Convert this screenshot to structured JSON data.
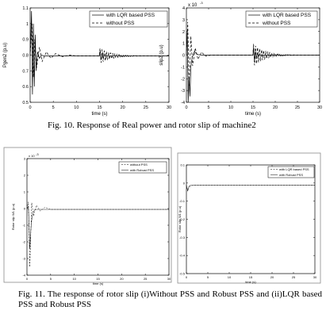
{
  "figure10": {
    "caption": "Fig. 10. Response of Real power and rotor slip of machine2"
  },
  "figure11": {
    "caption": "Fig. 11. The response of rotor slip (i)Without PSS and Robust PSS and (ii)LQR based PSS and Robust PSS"
  },
  "chart_data": [
    {
      "id": "pgen2",
      "type": "line",
      "ylabel": "Pgen2 (p.u)",
      "xlabel": "time (s)",
      "xlim": [
        0,
        30
      ],
      "ylim": [
        0.5,
        1.1
      ],
      "xticks": [
        0,
        5,
        10,
        15,
        20,
        25,
        30
      ],
      "xtick_labels": [
        "0",
        "5",
        "10",
        "15",
        "20",
        "25",
        "30"
      ],
      "yticks": [
        0.5,
        0.6,
        0.7,
        0.8,
        0.9,
        1.0,
        1.1
      ],
      "ytick_labels": [
        "0.5",
        "0.6",
        "0.7",
        "0.8",
        "0.9",
        "1",
        "1.1"
      ],
      "legend_position": "top-right",
      "series": [
        {
          "name": "with LQR based PSS",
          "style": "solid",
          "base": 0.795,
          "init": [
            [
              0.0,
              0.795
            ],
            [
              0.3,
              1.08
            ],
            [
              0.5,
              0.55
            ],
            [
              0.7,
              1.0
            ],
            [
              0.9,
              0.6
            ],
            [
              1.1,
              0.93
            ],
            [
              1.3,
              0.7
            ],
            [
              1.6,
              0.82
            ],
            [
              2.0,
              0.78
            ],
            [
              2.5,
              0.8
            ],
            [
              3.0,
              0.795
            ]
          ],
          "dist_at": 15,
          "dist_amp": 0.035,
          "dist_decay": 0.6
        },
        {
          "name": "without PSS",
          "style": "dashed",
          "base": 0.795,
          "init": [
            [
              0.0,
              0.795
            ],
            [
              0.4,
              1.0
            ],
            [
              0.7,
              0.66
            ],
            [
              1.0,
              0.9
            ],
            [
              1.4,
              0.72
            ],
            [
              2.0,
              0.85
            ],
            [
              2.6,
              0.76
            ],
            [
              3.5,
              0.82
            ],
            [
              4.5,
              0.78
            ],
            [
              5.5,
              0.81
            ],
            [
              7.0,
              0.79
            ],
            [
              8.5,
              0.8
            ],
            [
              10.0,
              0.795
            ]
          ],
          "dist_at": 15,
          "dist_amp": 0.05,
          "dist_decay": 2.5
        }
      ]
    },
    {
      "id": "slip2",
      "type": "line",
      "ylabel": "slip2 (p.u)",
      "xlabel": "time (s)",
      "xlim": [
        0,
        30
      ],
      "ylim": [
        -4,
        4
      ],
      "yscale_label": "x 10",
      "yscale_exponent": "-3",
      "xticks": [
        0,
        5,
        10,
        15,
        20,
        25,
        30
      ],
      "xtick_labels": [
        "0",
        "5",
        "10",
        "15",
        "20",
        "25",
        "30"
      ],
      "yticks": [
        -4,
        -3,
        -2,
        -1,
        0,
        1,
        2,
        3,
        4
      ],
      "ytick_labels": [
        "-4",
        "-3",
        "-2",
        "-1",
        "0",
        "1",
        "2",
        "3",
        "4"
      ],
      "legend_position": "top-right",
      "series": [
        {
          "name": "with LQR based PSS",
          "style": "solid",
          "base": 0,
          "init": [
            [
              0.0,
              0
            ],
            [
              0.2,
              2.0
            ],
            [
              0.4,
              -4.0
            ],
            [
              0.6,
              -1.8
            ],
            [
              0.8,
              -3.5
            ],
            [
              1.0,
              -1.0
            ],
            [
              1.3,
              -0.2
            ],
            [
              1.8,
              0.3
            ],
            [
              2.5,
              0.05
            ],
            [
              3.5,
              0
            ]
          ],
          "dist_at": 15,
          "dist_amp": 0.7,
          "dist_decay": 0.6
        },
        {
          "name": "without PSS",
          "style": "dashed",
          "base": 0,
          "init": [
            [
              0.0,
              0
            ],
            [
              0.3,
              2.8
            ],
            [
              0.6,
              -2.6
            ],
            [
              1.0,
              1.6
            ],
            [
              1.4,
              -0.9
            ],
            [
              2.0,
              0.6
            ],
            [
              2.6,
              -0.35
            ],
            [
              3.4,
              0.25
            ],
            [
              4.4,
              -0.1
            ],
            [
              5.5,
              0
            ]
          ],
          "dist_at": 15,
          "dist_amp": 1.0,
          "dist_decay": 2.5
        }
      ]
    },
    {
      "id": "fig11a",
      "type": "line",
      "ylabel": "Rotor slip W1 (p.u)",
      "xlabel": "time (s)",
      "xlim": [
        0,
        30
      ],
      "ylim": [
        -4,
        3
      ],
      "yscale_label": "x 10",
      "yscale_exponent": "-3",
      "xticks": [
        0,
        5,
        10,
        15,
        20,
        25,
        30
      ],
      "xtick_labels": [
        "0",
        "5",
        "10",
        "15",
        "20",
        "25",
        "30"
      ],
      "yticks": [
        -4,
        -3,
        -2,
        -1,
        0,
        1,
        2,
        3
      ],
      "ytick_labels": [
        "-4",
        "-3",
        "-2",
        "-1",
        "0",
        "1",
        "2",
        "3"
      ],
      "legend_position": "top-right",
      "series": [
        {
          "name": "without PSS",
          "style": "dashed",
          "base": -0.05,
          "init": [
            [
              0.0,
              0
            ],
            [
              0.3,
              0.4
            ],
            [
              0.6,
              -3.5
            ],
            [
              1.0,
              0.35
            ],
            [
              1.4,
              -0.45
            ],
            [
              2.0,
              0.2
            ],
            [
              2.8,
              -0.15
            ],
            [
              3.8,
              0.08
            ],
            [
              5.0,
              -0.05
            ]
          ],
          "dist_at": null,
          "dist_amp": 0,
          "dist_decay": 1
        },
        {
          "name": "with Robust PSS",
          "style": "solid",
          "base": -0.05,
          "init": [
            [
              0.0,
              0
            ],
            [
              0.3,
              0.15
            ],
            [
              0.6,
              -2.4
            ],
            [
              0.9,
              -0.9
            ],
            [
              1.2,
              -0.3
            ],
            [
              1.7,
              -0.05
            ]
          ],
          "dist_at": null,
          "dist_amp": 0,
          "dist_decay": 1
        }
      ]
    },
    {
      "id": "fig11b",
      "type": "line",
      "ylabel": "Rotor slip W1 (p.u)",
      "xlabel": "time (s)",
      "xlim": [
        0,
        30
      ],
      "ylim": [
        -0.5,
        0.1
      ],
      "xticks": [
        0,
        5,
        10,
        15,
        20,
        25,
        30
      ],
      "xtick_labels": [
        "0",
        "5",
        "10",
        "15",
        "20",
        "25",
        "30"
      ],
      "yticks": [
        0.1,
        0,
        -0.1,
        -0.2,
        -0.3,
        -0.4,
        -0.5
      ],
      "ytick_labels": [
        "0.1",
        "0",
        "-0.1",
        "-0.2",
        "-0.3",
        "-0.4",
        "-0.5"
      ],
      "legend_position": "top-right",
      "series": [
        {
          "name": "with LQR based PSS",
          "style": "dashed",
          "base": -0.012,
          "init": [
            [
              0.0,
              -0.012
            ],
            [
              0.3,
              -0.04
            ],
            [
              0.7,
              -0.012
            ],
            [
              1.0,
              -0.02
            ],
            [
              1.5,
              -0.012
            ]
          ],
          "dist_at": null,
          "dist_amp": 0,
          "dist_decay": 1
        },
        {
          "name": "with Robust PSS",
          "style": "solid",
          "base": -0.012,
          "init": [
            [
              0.0,
              -0.012
            ],
            [
              0.3,
              -0.045
            ],
            [
              0.6,
              -0.02
            ],
            [
              1.0,
              -0.012
            ]
          ],
          "dist_at": null,
          "dist_amp": 0,
          "dist_decay": 1
        }
      ]
    }
  ]
}
